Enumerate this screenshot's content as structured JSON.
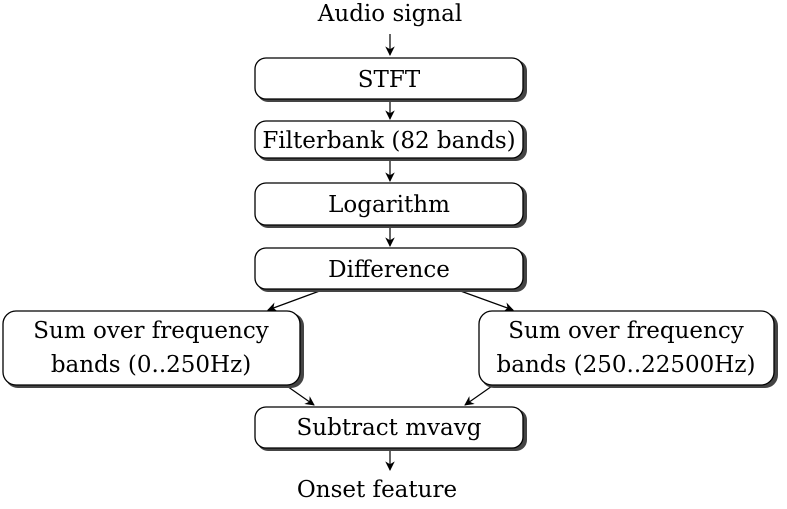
{
  "diagram": {
    "input_label": "Audio signal",
    "output_label": "Onset feature",
    "nodes": {
      "stft": "STFT",
      "filterbank": "Filterbank (82 bands)",
      "logarithm": "Logarithm",
      "difference": "Difference",
      "sum_low_line1": "Sum over frequency",
      "sum_low_line2": "bands (0..250Hz)",
      "sum_high_line1": "Sum over frequency",
      "sum_high_line2": "bands (250..22500Hz)",
      "subtract": "Subtract mvavg"
    }
  }
}
